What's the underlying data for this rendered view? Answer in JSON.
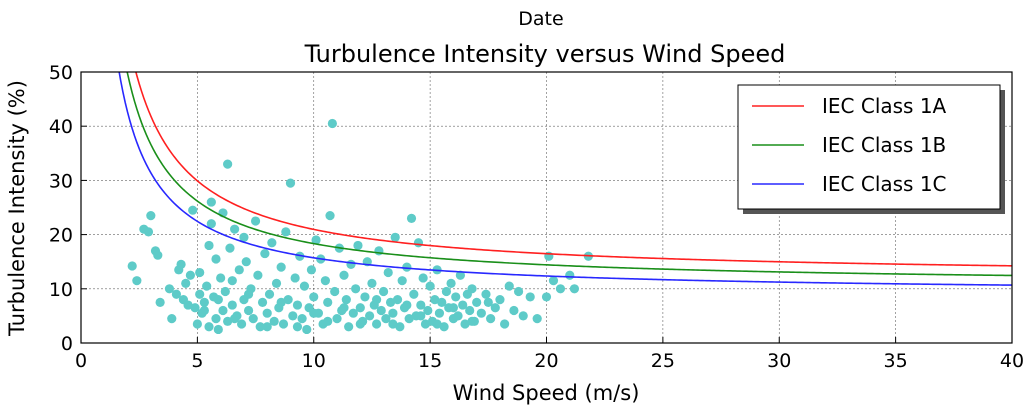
{
  "figure": {
    "suptitle": "Date",
    "title": "Turbulence Intensity versus Wind Speed"
  },
  "chart_data": {
    "type": "scatter",
    "title": "Turbulence Intensity versus Wind Speed",
    "suptitle": "Date",
    "xlabel": "Wind Speed (m/s)",
    "ylabel": "Turbulence Intensity (%)",
    "xlim": [
      0,
      40
    ],
    "ylim": [
      0,
      50
    ],
    "xticks": [
      "0",
      "5",
      "10",
      "15",
      "20",
      "25",
      "30",
      "35",
      "40"
    ],
    "yticks": [
      "0",
      "10",
      "20",
      "30",
      "40",
      "50"
    ],
    "grid": true,
    "legend_position": "top-right",
    "colors": {
      "scatter": "#5ecbc8",
      "class_1a": "#ff2020",
      "class_1b": "#1a8f1a",
      "class_1c": "#2828ff"
    },
    "series": [
      {
        "name": "IEC Class 1A",
        "kind": "line",
        "color": "#ff2020",
        "iref": 0.16
      },
      {
        "name": "IEC Class 1B",
        "kind": "line",
        "color": "#1a8f1a",
        "iref": 0.14
      },
      {
        "name": "IEC Class 1C",
        "kind": "line",
        "color": "#2828ff",
        "iref": 0.12
      }
    ],
    "measurements": {
      "color": "#5ecbc8",
      "points": [
        [
          2.2,
          14.2
        ],
        [
          2.4,
          11.5
        ],
        [
          2.7,
          21.0
        ],
        [
          2.9,
          20.5
        ],
        [
          3.0,
          23.5
        ],
        [
          3.2,
          17.0
        ],
        [
          3.3,
          16.2
        ],
        [
          3.4,
          7.5
        ],
        [
          3.8,
          10.0
        ],
        [
          3.9,
          4.5
        ],
        [
          4.1,
          9.0
        ],
        [
          4.2,
          13.5
        ],
        [
          4.3,
          14.5
        ],
        [
          4.4,
          8.0
        ],
        [
          4.5,
          11.0
        ],
        [
          4.6,
          7.0
        ],
        [
          4.7,
          12.5
        ],
        [
          4.8,
          24.5
        ],
        [
          4.9,
          6.5
        ],
        [
          5.0,
          3.5
        ],
        [
          5.1,
          9.0
        ],
        [
          5.1,
          13.0
        ],
        [
          5.2,
          5.5
        ],
        [
          5.3,
          7.5
        ],
        [
          5.4,
          10.5
        ],
        [
          5.5,
          3.0
        ],
        [
          5.5,
          18.0
        ],
        [
          5.6,
          22.0
        ],
        [
          5.6,
          26.0
        ],
        [
          5.7,
          8.5
        ],
        [
          5.8,
          4.5
        ],
        [
          5.8,
          15.5
        ],
        [
          5.9,
          2.5
        ],
        [
          6.0,
          12.0
        ],
        [
          6.1,
          6.0
        ],
        [
          6.1,
          24.0
        ],
        [
          6.2,
          9.5
        ],
        [
          6.3,
          33.0
        ],
        [
          6.3,
          4.0
        ],
        [
          6.4,
          17.5
        ],
        [
          6.5,
          7.0
        ],
        [
          6.5,
          11.5
        ],
        [
          6.6,
          21.0
        ],
        [
          6.7,
          5.0
        ],
        [
          6.8,
          13.5
        ],
        [
          6.9,
          3.5
        ],
        [
          7.0,
          8.0
        ],
        [
          7.0,
          19.5
        ],
        [
          7.1,
          15.0
        ],
        [
          7.2,
          6.0
        ],
        [
          7.3,
          10.0
        ],
        [
          7.4,
          4.5
        ],
        [
          7.5,
          22.5
        ],
        [
          7.6,
          12.5
        ],
        [
          7.7,
          3.0
        ],
        [
          7.8,
          7.5
        ],
        [
          7.9,
          16.5
        ],
        [
          8.0,
          5.5
        ],
        [
          8.1,
          9.0
        ],
        [
          8.2,
          18.5
        ],
        [
          8.3,
          4.0
        ],
        [
          8.4,
          11.0
        ],
        [
          8.5,
          6.5
        ],
        [
          8.6,
          14.0
        ],
        [
          8.7,
          3.5
        ],
        [
          8.8,
          20.5
        ],
        [
          8.9,
          8.0
        ],
        [
          9.0,
          29.5
        ],
        [
          9.1,
          5.0
        ],
        [
          9.2,
          12.0
        ],
        [
          9.3,
          7.0
        ],
        [
          9.4,
          16.0
        ],
        [
          9.5,
          4.5
        ],
        [
          9.6,
          10.5
        ],
        [
          9.7,
          2.5
        ],
        [
          9.8,
          6.5
        ],
        [
          9.9,
          13.5
        ],
        [
          10.0,
          8.5
        ],
        [
          10.1,
          19.0
        ],
        [
          10.2,
          5.5
        ],
        [
          10.3,
          15.5
        ],
        [
          10.4,
          3.5
        ],
        [
          10.5,
          11.5
        ],
        [
          10.6,
          7.5
        ],
        [
          10.7,
          23.5
        ],
        [
          10.8,
          40.5
        ],
        [
          10.9,
          9.5
        ],
        [
          11.0,
          4.5
        ],
        [
          11.1,
          17.5
        ],
        [
          11.2,
          6.0
        ],
        [
          11.3,
          12.5
        ],
        [
          11.4,
          8.0
        ],
        [
          11.5,
          3.0
        ],
        [
          11.6,
          14.5
        ],
        [
          11.7,
          5.5
        ],
        [
          11.8,
          10.0
        ],
        [
          11.9,
          18.0
        ],
        [
          12.0,
          6.5
        ],
        [
          12.1,
          4.0
        ],
        [
          12.2,
          8.5
        ],
        [
          12.3,
          15.0
        ],
        [
          12.4,
          5.0
        ],
        [
          12.5,
          11.0
        ],
        [
          12.6,
          7.0
        ],
        [
          12.7,
          3.5
        ],
        [
          12.8,
          17.0
        ],
        [
          12.9,
          6.0
        ],
        [
          13.0,
          9.5
        ],
        [
          13.1,
          4.5
        ],
        [
          13.2,
          13.0
        ],
        [
          13.3,
          7.5
        ],
        [
          13.4,
          5.5
        ],
        [
          13.5,
          19.5
        ],
        [
          13.6,
          8.0
        ],
        [
          13.7,
          3.0
        ],
        [
          13.8,
          11.5
        ],
        [
          13.9,
          6.5
        ],
        [
          14.0,
          14.0
        ],
        [
          14.1,
          4.5
        ],
        [
          14.2,
          23.0
        ],
        [
          14.3,
          9.0
        ],
        [
          14.4,
          5.0
        ],
        [
          14.5,
          18.5
        ],
        [
          14.6,
          7.0
        ],
        [
          14.7,
          12.0
        ],
        [
          14.8,
          3.5
        ],
        [
          14.9,
          6.0
        ],
        [
          15.0,
          10.5
        ],
        [
          15.1,
          4.0
        ],
        [
          15.2,
          8.0
        ],
        [
          15.3,
          13.5
        ],
        [
          15.4,
          5.5
        ],
        [
          15.5,
          7.5
        ],
        [
          15.6,
          3.0
        ],
        [
          15.7,
          9.5
        ],
        [
          15.8,
          6.5
        ],
        [
          15.9,
          11.0
        ],
        [
          16.0,
          4.5
        ],
        [
          16.1,
          8.5
        ],
        [
          16.2,
          5.0
        ],
        [
          16.3,
          12.5
        ],
        [
          16.4,
          7.0
        ],
        [
          16.5,
          3.5
        ],
        [
          16.6,
          9.0
        ],
        [
          16.7,
          6.0
        ],
        [
          16.8,
          10.0
        ],
        [
          16.9,
          4.0
        ],
        [
          17.0,
          7.5
        ],
        [
          17.2,
          5.5
        ],
        [
          17.4,
          9.0
        ],
        [
          17.6,
          4.5
        ],
        [
          17.8,
          6.5
        ],
        [
          18.0,
          8.0
        ],
        [
          18.2,
          3.5
        ],
        [
          18.4,
          10.5
        ],
        [
          18.6,
          6.0
        ],
        [
          18.8,
          9.5
        ],
        [
          19.0,
          5.0
        ],
        [
          19.3,
          8.5
        ],
        [
          19.6,
          4.5
        ],
        [
          20.0,
          8.5
        ],
        [
          20.1,
          16.0
        ],
        [
          20.3,
          11.5
        ],
        [
          20.6,
          10.0
        ],
        [
          21.0,
          12.5
        ],
        [
          21.2,
          10.0
        ],
        [
          21.8,
          16.0
        ],
        [
          5.3,
          6.0
        ],
        [
          5.9,
          8.0
        ],
        [
          6.6,
          4.5
        ],
        [
          7.2,
          9.0
        ],
        [
          8.0,
          3.0
        ],
        [
          8.6,
          7.5
        ],
        [
          9.3,
          3.0
        ],
        [
          10.0,
          5.5
        ],
        [
          10.6,
          4.0
        ],
        [
          11.3,
          6.5
        ],
        [
          12.0,
          3.5
        ],
        [
          12.7,
          8.0
        ],
        [
          13.4,
          3.5
        ],
        [
          14.0,
          7.0
        ],
        [
          14.6,
          5.0
        ],
        [
          15.3,
          3.5
        ],
        [
          16.0,
          6.5
        ],
        [
          16.8,
          4.0
        ],
        [
          17.5,
          7.5
        ]
      ]
    }
  }
}
